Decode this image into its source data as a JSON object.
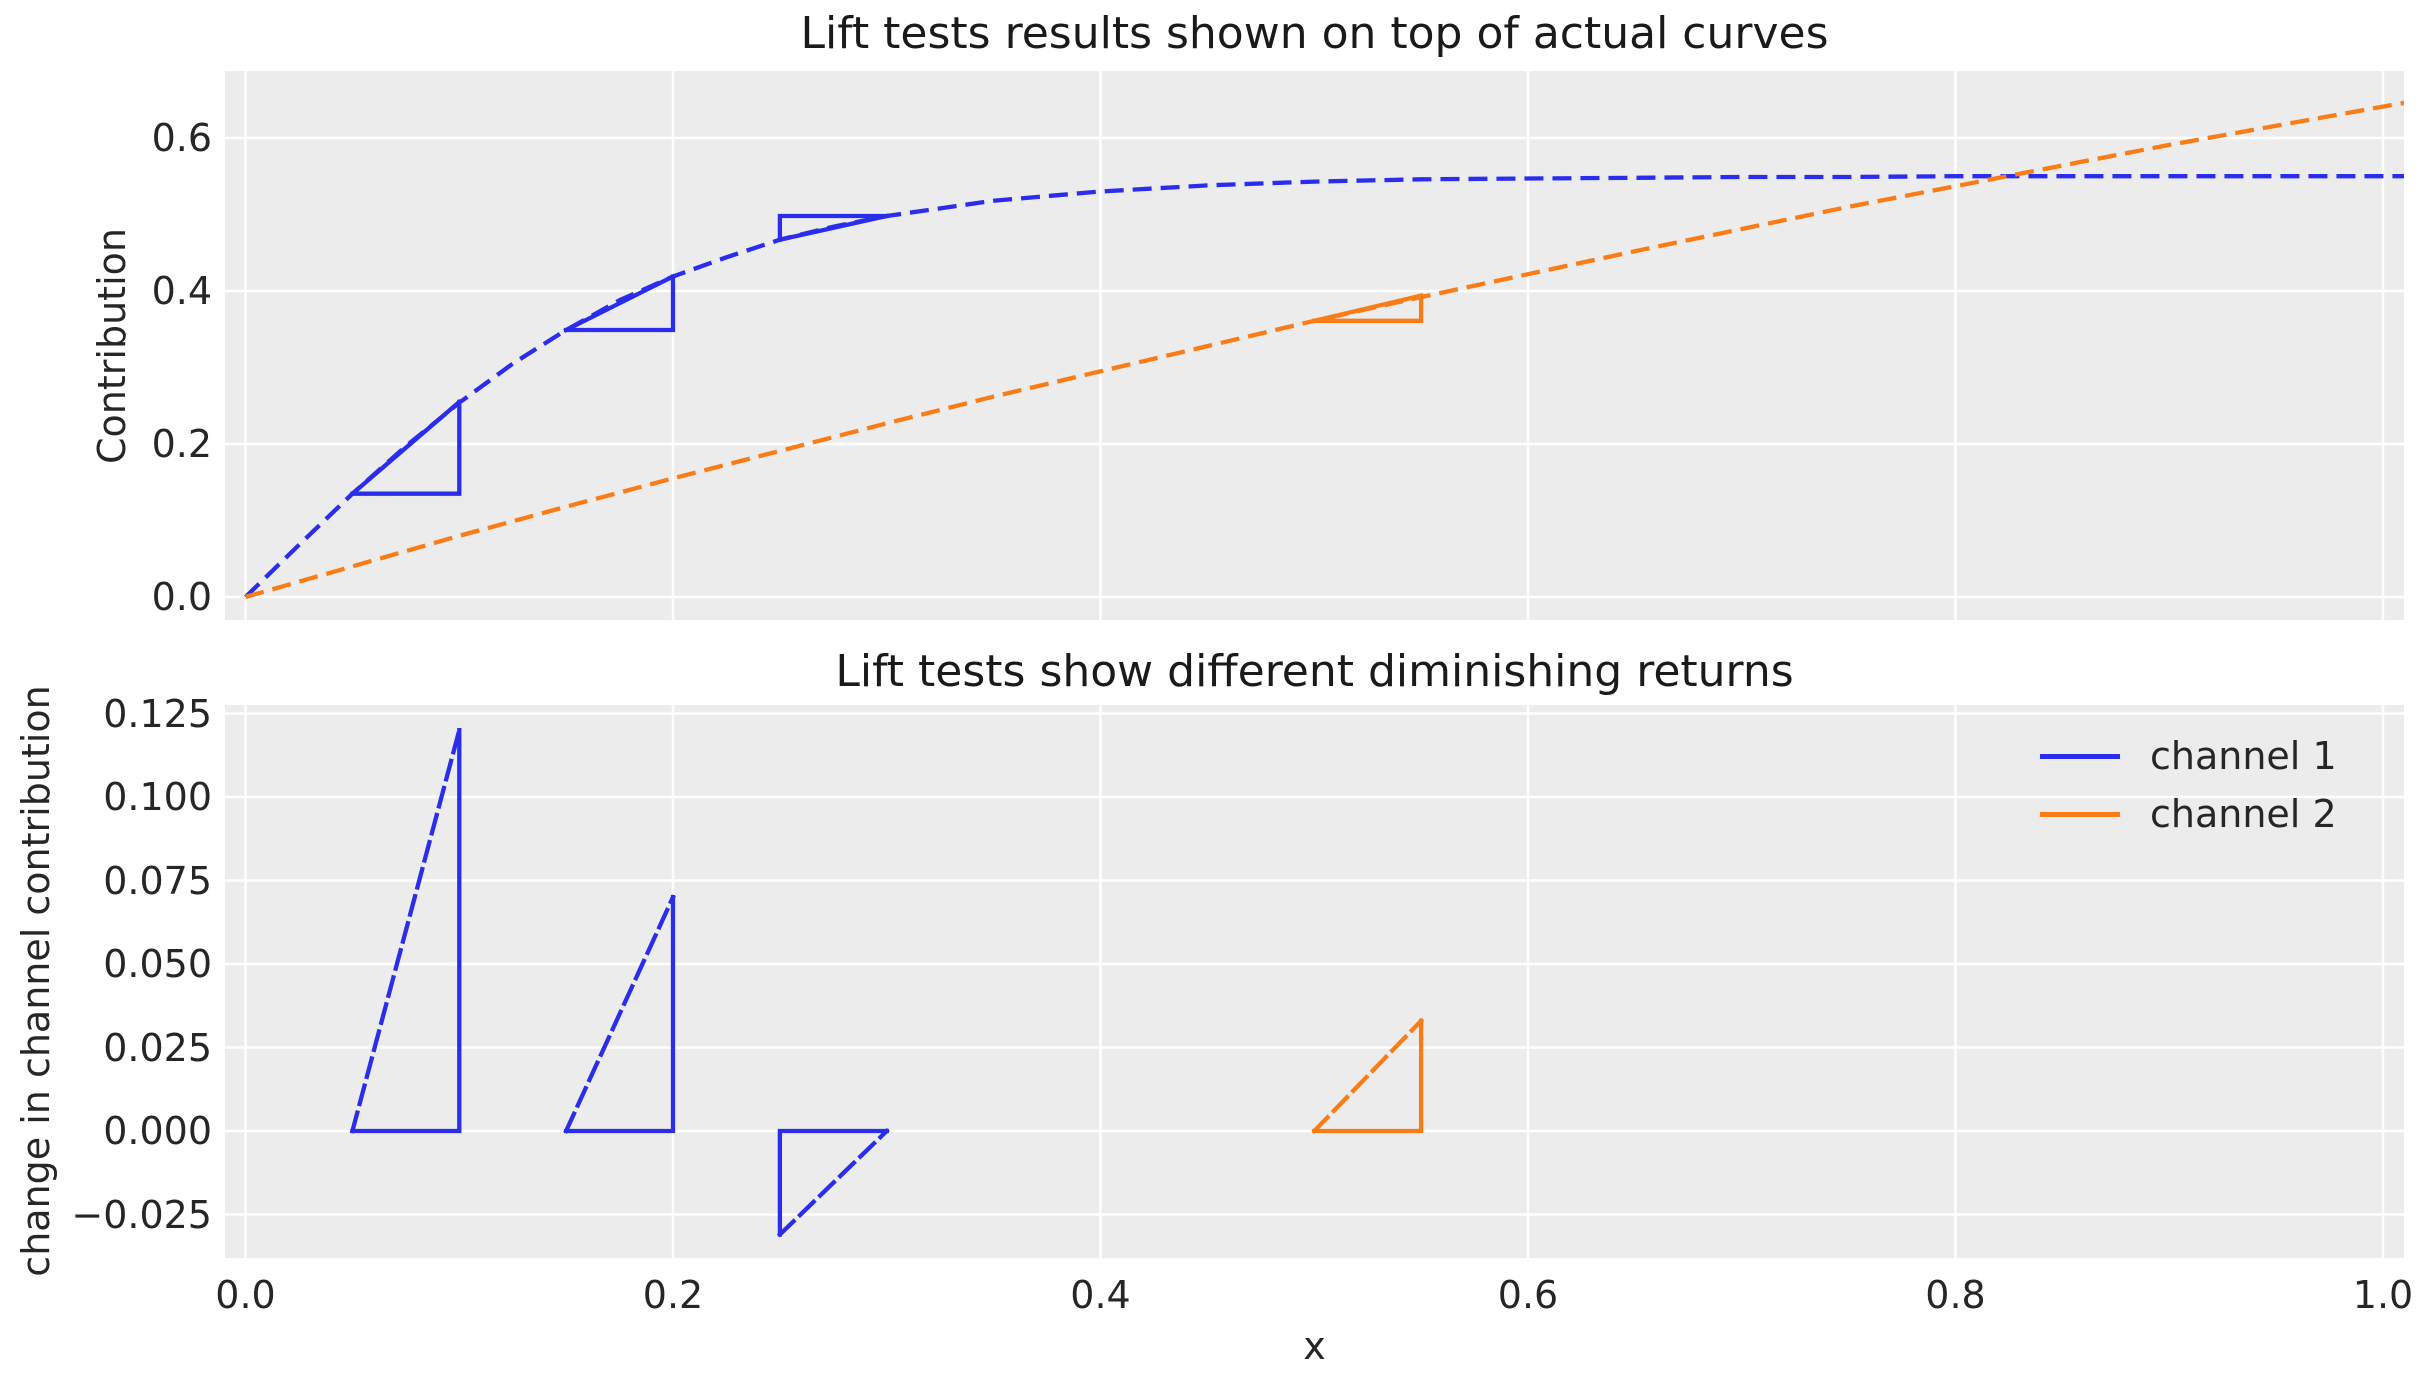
{
  "figure": {
    "background": "#ffffff",
    "axes_background": "#ececec",
    "grid_color": "#ffffff",
    "text_color": "#262626",
    "colors": {
      "channel_1": "#2a2eec",
      "channel_2": "#fa7c17"
    }
  },
  "chart_data": [
    {
      "subplot": "top",
      "type": "line",
      "title": "Lift tests results shown on top of actual curves",
      "ylabel": "Contribution",
      "xlabel": "",
      "xlim": [
        -0.0096,
        1.0103
      ],
      "ylim": [
        -0.0301,
        0.6876
      ],
      "grid": true,
      "xticks": [
        0.0,
        0.2,
        0.4,
        0.6,
        0.8,
        1.0
      ],
      "xtick_labels": [],
      "yticks": [
        0.0,
        0.2,
        0.4,
        0.6
      ],
      "ytick_labels": [
        "0.0",
        "0.2",
        "0.4",
        "0.6"
      ],
      "series": [
        {
          "name": "channel 1",
          "color_key": "channel_1",
          "style": "dashed",
          "x": [
            0,
            0.025,
            0.05,
            0.075,
            0.1,
            0.125,
            0.15,
            0.175,
            0.2,
            0.225,
            0.25,
            0.275,
            0.3,
            0.35,
            0.4,
            0.45,
            0.5,
            0.55,
            0.6,
            0.65,
            0.7,
            0.75,
            0.8,
            0.85,
            0.9,
            0.95,
            1.0,
            1.01
          ],
          "y": [
            0,
            0.068,
            0.135,
            0.197,
            0.254,
            0.305,
            0.349,
            0.388,
            0.419,
            0.444,
            0.467,
            0.484,
            0.498,
            0.518,
            0.53,
            0.538,
            0.543,
            0.546,
            0.547,
            0.548,
            0.549,
            0.549,
            0.55,
            0.55,
            0.55,
            0.55,
            0.55,
            0.55
          ]
        },
        {
          "name": "channel 2",
          "color_key": "channel_2",
          "style": "dashed",
          "x": [
            0,
            0.05,
            0.1,
            0.15,
            0.2,
            0.25,
            0.3,
            0.35,
            0.4,
            0.45,
            0.5,
            0.55,
            0.6,
            0.65,
            0.7,
            0.75,
            0.8,
            0.85,
            0.9,
            0.95,
            1.0,
            1.01
          ],
          "y": [
            0,
            0.04,
            0.08,
            0.118,
            0.155,
            0.191,
            0.227,
            0.262,
            0.295,
            0.328,
            0.361,
            0.392,
            0.422,
            0.452,
            0.481,
            0.51,
            0.537,
            0.564,
            0.591,
            0.616,
            0.641,
            0.646
          ]
        }
      ],
      "lift_tests": [
        {
          "channel": "channel 1",
          "color_key": "channel_1",
          "x_start": 0.05,
          "x_end": 0.1,
          "base_y": 0.135,
          "delta": 0.12,
          "horizontal": {
            "y": 0.135,
            "x1": 0.05,
            "x2": 0.1
          },
          "vertical": {
            "x": 0.1,
            "y1": 0.135,
            "y2": 0.255
          },
          "hypotenuse": {
            "x1": 0.05,
            "y1": 0.135,
            "x2": 0.1,
            "y2": 0.255
          }
        },
        {
          "channel": "channel 1",
          "color_key": "channel_1",
          "x_start": 0.15,
          "x_end": 0.2,
          "base_y": 0.349,
          "delta": 0.07,
          "horizontal": {
            "y": 0.349,
            "x1": 0.15,
            "x2": 0.2
          },
          "vertical": {
            "x": 0.2,
            "y1": 0.349,
            "y2": 0.419
          },
          "hypotenuse": {
            "x1": 0.15,
            "y1": 0.349,
            "x2": 0.2,
            "y2": 0.419
          }
        },
        {
          "channel": "channel 1",
          "color_key": "channel_1",
          "x_start": 0.25,
          "x_end": 0.3,
          "base_y": 0.467,
          "delta": -0.031,
          "horizontal": {
            "y": 0.498,
            "x1": 0.25,
            "x2": 0.3
          },
          "vertical": {
            "x": 0.25,
            "y1": 0.467,
            "y2": 0.498
          },
          "hypotenuse": {
            "x1": 0.25,
            "y1": 0.467,
            "x2": 0.3,
            "y2": 0.498
          }
        },
        {
          "channel": "channel 2",
          "color_key": "channel_2",
          "x_start": 0.5,
          "x_end": 0.55,
          "base_y": 0.361,
          "delta": 0.033,
          "horizontal": {
            "y": 0.361,
            "x1": 0.5,
            "x2": 0.55
          },
          "vertical": {
            "x": 0.55,
            "y1": 0.361,
            "y2": 0.394
          },
          "hypotenuse": {
            "x1": 0.5,
            "y1": 0.361,
            "x2": 0.55,
            "y2": 0.394
          }
        }
      ]
    },
    {
      "subplot": "bottom",
      "type": "line",
      "title": "Lift tests show different diminishing returns",
      "ylabel": "change in channel contribution",
      "xlabel": "x",
      "xlim": [
        -0.0096,
        1.0103
      ],
      "ylim": [
        -0.038,
        0.1275
      ],
      "grid": true,
      "xticks": [
        0.0,
        0.2,
        0.4,
        0.6,
        0.8,
        1.0
      ],
      "xtick_labels": [
        "0.0",
        "0.2",
        "0.4",
        "0.6",
        "0.8",
        "1.0"
      ],
      "yticks": [
        -0.025,
        0.0,
        0.025,
        0.05,
        0.075,
        0.1,
        0.125
      ],
      "ytick_labels": [
        "−0.025",
        "0.000",
        "0.025",
        "0.050",
        "0.075",
        "0.100",
        "0.125"
      ],
      "legend": {
        "position": "upper right",
        "entries": [
          {
            "label": "channel 1",
            "color_key": "channel_1"
          },
          {
            "label": "channel 2",
            "color_key": "channel_2"
          }
        ]
      },
      "triangles": [
        {
          "channel": "channel 1",
          "color_key": "channel_1",
          "x_start": 0.05,
          "x_end": 0.1,
          "delta": 0.12,
          "horizontal": {
            "y": 0,
            "x1": 0.05,
            "x2": 0.1
          },
          "vertical": {
            "x": 0.1,
            "y1": 0,
            "y2": 0.12
          },
          "hypotenuse": {
            "x1": 0.05,
            "y1": 0,
            "x2": 0.1,
            "y2": 0.12
          }
        },
        {
          "channel": "channel 1",
          "color_key": "channel_1",
          "x_start": 0.15,
          "x_end": 0.2,
          "delta": 0.07,
          "horizontal": {
            "y": 0,
            "x1": 0.15,
            "x2": 0.2
          },
          "vertical": {
            "x": 0.2,
            "y1": 0,
            "y2": 0.07
          },
          "hypotenuse": {
            "x1": 0.15,
            "y1": 0,
            "x2": 0.2,
            "y2": 0.07
          }
        },
        {
          "channel": "channel 1",
          "color_key": "channel_1",
          "x_start": 0.25,
          "x_end": 0.3,
          "delta": -0.031,
          "horizontal": {
            "y": 0,
            "x1": 0.25,
            "x2": 0.3
          },
          "vertical": {
            "x": 0.25,
            "y1": 0,
            "y2": -0.031
          },
          "hypotenuse": {
            "x1": 0.25,
            "y1": -0.031,
            "x2": 0.3,
            "y2": 0
          }
        },
        {
          "channel": "channel 2",
          "color_key": "channel_2",
          "x_start": 0.5,
          "x_end": 0.55,
          "delta": 0.033,
          "horizontal": {
            "y": 0,
            "x1": 0.5,
            "x2": 0.55
          },
          "vertical": {
            "x": 0.55,
            "y1": 0,
            "y2": 0.033
          },
          "hypotenuse": {
            "x1": 0.5,
            "y1": 0,
            "x2": 0.55,
            "y2": 0.033
          }
        }
      ]
    }
  ]
}
